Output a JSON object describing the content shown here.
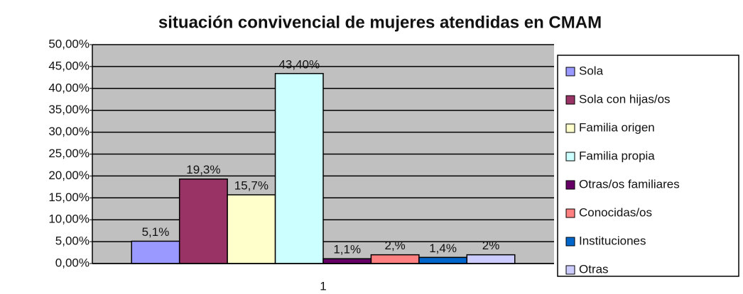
{
  "chart_data": {
    "type": "bar",
    "title": "situación convivencial de mujeres atendidas en CMAM",
    "categories": [
      "1"
    ],
    "series": [
      {
        "name": "Sola",
        "color": "#9999ff",
        "values": [
          5.1
        ],
        "value_labels": [
          "5,1%"
        ]
      },
      {
        "name": "Sola con hijas/os",
        "color": "#993366",
        "values": [
          19.3
        ],
        "value_labels": [
          "19,3%"
        ]
      },
      {
        "name": "Familia origen",
        "color": "#ffffcc",
        "values": [
          15.7
        ],
        "value_labels": [
          "15,7%"
        ]
      },
      {
        "name": "Familia propia",
        "color": "#ccffff",
        "values": [
          43.4
        ],
        "value_labels": [
          "43,40%"
        ]
      },
      {
        "name": "Otras/os familiares",
        "color": "#660066",
        "values": [
          1.1
        ],
        "value_labels": [
          "1,1%"
        ]
      },
      {
        "name": "Conocidas/os",
        "color": "#ff8080",
        "values": [
          2
        ],
        "value_labels": [
          "2,%"
        ]
      },
      {
        "name": "Instituciones",
        "color": "#0066cc",
        "values": [
          1.4
        ],
        "value_labels": [
          "1,4%"
        ]
      },
      {
        "name": "Otras",
        "color": "#ccccff",
        "values": [
          2
        ],
        "value_labels": [
          "2%"
        ]
      }
    ],
    "ylim": [
      0,
      50
    ],
    "yticks": [
      {
        "value": 0,
        "label": "0,00%"
      },
      {
        "value": 5,
        "label": "5,00%"
      },
      {
        "value": 10,
        "label": "10,00%"
      },
      {
        "value": 15,
        "label": "15,00%"
      },
      {
        "value": 20,
        "label": "20,00%"
      },
      {
        "value": 25,
        "label": "25,00%"
      },
      {
        "value": 30,
        "label": "30,00%"
      },
      {
        "value": 35,
        "label": "35,00%"
      },
      {
        "value": 40,
        "label": "40,00%"
      },
      {
        "value": 45,
        "label": "45,00%"
      },
      {
        "value": 50,
        "label": "50,00%"
      }
    ],
    "grid": true,
    "legend": "right"
  }
}
